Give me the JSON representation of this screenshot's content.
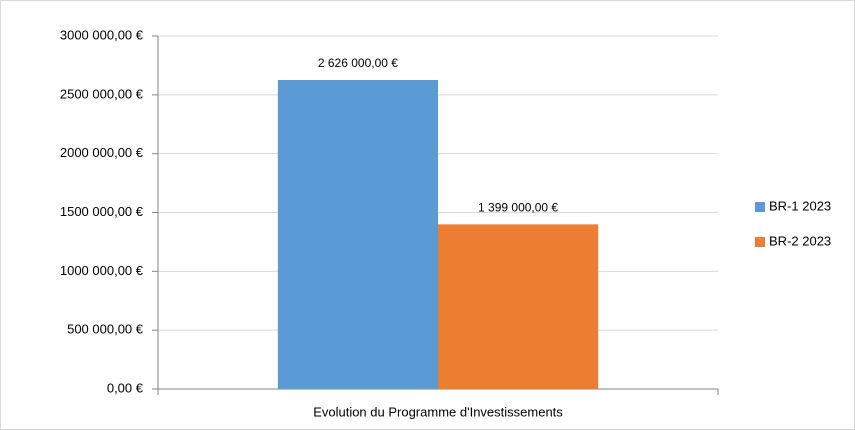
{
  "chart_data": {
    "type": "bar",
    "categories": [
      "Evolution du Programme d'Investissements"
    ],
    "series": [
      {
        "name": "BR-1 2023",
        "color": "#5b9bd5",
        "values": [
          2626000
        ],
        "value_labels": [
          "2 626 000,00 €"
        ]
      },
      {
        "name": "BR-2 2023",
        "color": "#ed7d31",
        "values": [
          1399000
        ],
        "value_labels": [
          "1 399 000,00 €"
        ]
      }
    ],
    "ylim": [
      0,
      3000000
    ],
    "yticks": [
      {
        "value": 0,
        "label": "0,00 €"
      },
      {
        "value": 500000,
        "label": "500 000,00 €"
      },
      {
        "value": 1000000,
        "label": "1000 000,00 €"
      },
      {
        "value": 1500000,
        "label": "1500 000,00 €"
      },
      {
        "value": 2000000,
        "label": "2000 000,00 €"
      },
      {
        "value": 2500000,
        "label": "2500 000,00 €"
      },
      {
        "value": 3000000,
        "label": "3000 000,00 €"
      }
    ],
    "grid": true,
    "legend": "right"
  }
}
